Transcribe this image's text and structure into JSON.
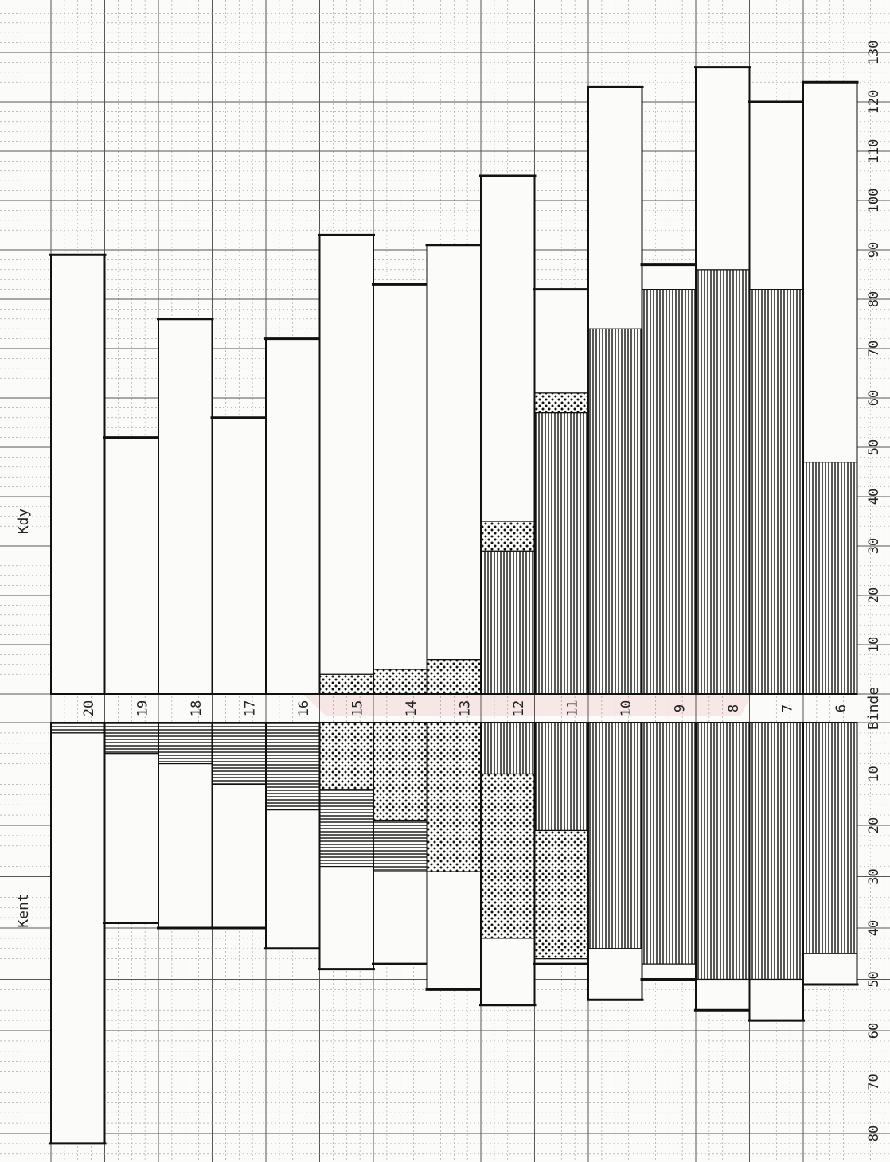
{
  "chart_data": {
    "type": "bar",
    "orientation": "horizontal",
    "upper_label": "Kdy",
    "lower_label": "Kent",
    "center_axis_label": "Binde",
    "categories": [
      "20",
      "19",
      "18",
      "17",
      "16",
      "15",
      "14",
      "13",
      "12",
      "11",
      "10",
      "9",
      "8",
      "7",
      "6"
    ],
    "kdy_ticks": [
      "10",
      "20",
      "30",
      "40",
      "50",
      "60",
      "70",
      "80",
      "90",
      "100",
      "110",
      "120",
      "130"
    ],
    "kent_ticks": [
      "10",
      "20",
      "30",
      "40",
      "50",
      "60",
      "70",
      "80"
    ],
    "series": [
      {
        "name": "Kdy",
        "segments": [
          [
            [
              0,
              89,
              "blank"
            ]
          ],
          [
            [
              0,
              52,
              "blank"
            ]
          ],
          [
            [
              0,
              76,
              "blank"
            ]
          ],
          [
            [
              0,
              56,
              "blank"
            ]
          ],
          [
            [
              0,
              72,
              "blank"
            ]
          ],
          [
            [
              0,
              4,
              "dots"
            ],
            [
              4,
              93,
              "blank"
            ]
          ],
          [
            [
              0,
              5,
              "dots"
            ],
            [
              5,
              83,
              "blank"
            ]
          ],
          [
            [
              0,
              7,
              "dots"
            ],
            [
              7,
              91,
              "blank"
            ]
          ],
          [
            [
              0,
              29,
              "vlines"
            ],
            [
              29,
              35,
              "dots"
            ],
            [
              35,
              105,
              "blank"
            ]
          ],
          [
            [
              0,
              57,
              "vlines"
            ],
            [
              57,
              61,
              "dots"
            ],
            [
              61,
              82,
              "blank"
            ]
          ],
          [
            [
              0,
              74,
              "vlines"
            ],
            [
              74,
              123,
              "blank"
            ]
          ],
          [
            [
              0,
              82,
              "vlines"
            ],
            [
              82,
              87,
              "blank"
            ]
          ],
          [
            [
              0,
              86,
              "vlines"
            ],
            [
              86,
              127,
              "blank"
            ]
          ],
          [
            [
              0,
              82,
              "vlines"
            ],
            [
              82,
              120,
              "blank"
            ]
          ],
          [
            [
              0,
              47,
              "vlines"
            ],
            [
              47,
              124,
              "blank"
            ]
          ]
        ]
      },
      {
        "name": "Kent",
        "segments": [
          [
            [
              0,
              2,
              "hlines"
            ],
            [
              2,
              82,
              "blank"
            ]
          ],
          [
            [
              0,
              6,
              "hlines"
            ],
            [
              6,
              39,
              "blank"
            ]
          ],
          [
            [
              0,
              8,
              "hlines"
            ],
            [
              8,
              40,
              "blank"
            ]
          ],
          [
            [
              0,
              12,
              "hlines"
            ],
            [
              12,
              40,
              "blank"
            ]
          ],
          [
            [
              0,
              17,
              "hlines"
            ],
            [
              17,
              44,
              "blank"
            ]
          ],
          [
            [
              0,
              13,
              "dots"
            ],
            [
              13,
              28,
              "hlines"
            ],
            [
              28,
              48,
              "blank"
            ]
          ],
          [
            [
              0,
              19,
              "dots"
            ],
            [
              19,
              29,
              "hlines"
            ],
            [
              29,
              47,
              "blank"
            ]
          ],
          [
            [
              0,
              29,
              "dots"
            ],
            [
              29,
              52,
              "blank"
            ]
          ],
          [
            [
              0,
              10,
              "vlines"
            ],
            [
              10,
              42,
              "dots"
            ],
            [
              42,
              55,
              "blank"
            ]
          ],
          [
            [
              0,
              21,
              "vlines"
            ],
            [
              21,
              46,
              "dots"
            ],
            [
              46,
              47,
              "blank"
            ]
          ],
          [
            [
              0,
              44,
              "vlines"
            ],
            [
              44,
              54,
              "blank"
            ]
          ],
          [
            [
              0,
              47,
              "vlines"
            ],
            [
              47,
              50,
              "blank"
            ]
          ],
          [
            [
              0,
              50,
              "vlines"
            ],
            [
              50,
              56,
              "blank"
            ]
          ],
          [
            [
              0,
              50,
              "vlines"
            ],
            [
              50,
              58,
              "blank"
            ]
          ],
          [
            [
              0,
              45,
              "vlines"
            ],
            [
              45,
              51,
              "blank"
            ]
          ]
        ]
      }
    ],
    "xlim_kdy": [
      0,
      130
    ],
    "xlim_kent": [
      0,
      80
    ],
    "grid": true
  }
}
